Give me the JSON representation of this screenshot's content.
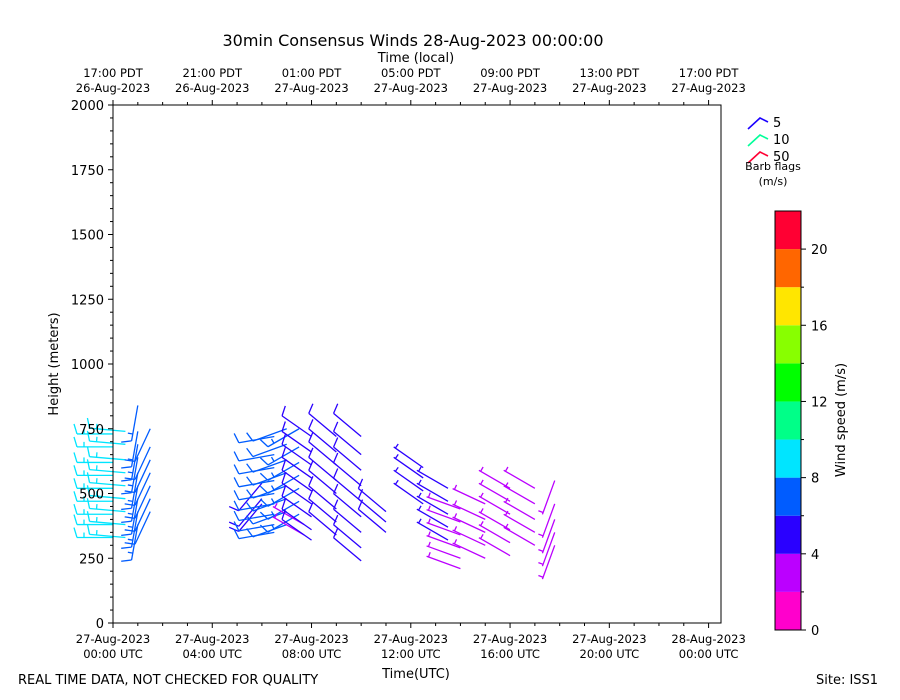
{
  "chart_data": {
    "type": "wind_barb",
    "title": "30min Consensus Winds 28-Aug-2023 00:00:00",
    "top_axis_label": "Time (local)",
    "xlabel": "Time(UTC)",
    "ylabel": "Height (meters)",
    "xlim_hours": [
      0,
      24.5
    ],
    "ylim": [
      0,
      2000
    ],
    "y_ticks": [
      0,
      250,
      500,
      750,
      1000,
      1250,
      1500,
      1750,
      2000
    ],
    "x_ticks": [
      {
        "hour": 0,
        "line1": "27-Aug-2023",
        "line2": "00:00 UTC"
      },
      {
        "hour": 4,
        "line1": "27-Aug-2023",
        "line2": "04:00 UTC"
      },
      {
        "hour": 8,
        "line1": "27-Aug-2023",
        "line2": "08:00 UTC"
      },
      {
        "hour": 12,
        "line1": "27-Aug-2023",
        "line2": "12:00 UTC"
      },
      {
        "hour": 16,
        "line1": "27-Aug-2023",
        "line2": "16:00 UTC"
      },
      {
        "hour": 20,
        "line1": "27-Aug-2023",
        "line2": "20:00 UTC"
      },
      {
        "hour": 24,
        "line1": "28-Aug-2023",
        "line2": "00:00 UTC"
      }
    ],
    "top_ticks": [
      {
        "hour": 0,
        "line1": "17:00 PDT",
        "line2": "26-Aug-2023"
      },
      {
        "hour": 4,
        "line1": "21:00 PDT",
        "line2": "26-Aug-2023"
      },
      {
        "hour": 8,
        "line1": "01:00 PDT",
        "line2": "27-Aug-2023"
      },
      {
        "hour": 12,
        "line1": "05:00 PDT",
        "line2": "27-Aug-2023"
      },
      {
        "hour": 16,
        "line1": "09:00 PDT",
        "line2": "27-Aug-2023"
      },
      {
        "hour": 20,
        "line1": "13:00 PDT",
        "line2": "27-Aug-2023"
      },
      {
        "hour": 24,
        "line1": "17:00 PDT",
        "line2": "27-Aug-2023"
      }
    ],
    "legend": {
      "title_line1": "Barb flags",
      "title_line2": "(m/s)",
      "entries": [
        {
          "label": "5",
          "color": "#1a00ff"
        },
        {
          "label": "10",
          "color": "#00ff99"
        },
        {
          "label": "50",
          "color": "#ff0033"
        }
      ]
    },
    "colorbar": {
      "label": "Wind speed (m/s)",
      "range": [
        0,
        22
      ],
      "ticks": [
        0,
        4,
        8,
        12,
        16,
        20
      ],
      "segments": [
        {
          "from": 0,
          "to": 2,
          "color": "#ff00cc"
        },
        {
          "from": 2,
          "to": 4,
          "color": "#bb00ff"
        },
        {
          "from": 4,
          "to": 6,
          "color": "#2a00ff"
        },
        {
          "from": 6,
          "to": 8,
          "color": "#005cff"
        },
        {
          "from": 8,
          "to": 10,
          "color": "#00e5ff"
        },
        {
          "from": 10,
          "to": 12,
          "color": "#00ff88"
        },
        {
          "from": 12,
          "to": 14,
          "color": "#00ff00"
        },
        {
          "from": 14,
          "to": 16,
          "color": "#88ff00"
        },
        {
          "from": 16,
          "to": 18,
          "color": "#ffe600"
        },
        {
          "from": 18,
          "to": 20,
          "color": "#ff6600"
        },
        {
          "from": 20,
          "to": 22,
          "color": "#ff0033"
        }
      ]
    },
    "series": [
      {
        "name": "t0.0",
        "hour": 0.0,
        "speed": 9,
        "dir": 270,
        "heights": [
          330,
          380,
          420,
          470,
          520,
          570,
          620,
          680,
          730
        ]
      },
      {
        "name": "t0.5",
        "hour": 0.5,
        "speed": 8,
        "dir": 275,
        "heights": [
          330,
          380,
          430,
          480,
          530,
          580,
          630,
          690,
          740
        ]
      },
      {
        "name": "t1.0",
        "hour": 1.0,
        "speed": 7,
        "dir": 190,
        "heights": [
          380,
          430,
          480,
          530,
          580,
          640,
          690,
          740,
          840
        ]
      },
      {
        "name": "t1.5",
        "hour": 1.5,
        "speed": 6,
        "dir": 205,
        "heights": [
          430,
          480,
          530,
          580,
          630,
          680,
          750
        ]
      },
      {
        "name": "t6.0",
        "hour": 6.0,
        "speed": 5,
        "dir": 220,
        "heights": [
          460,
          480,
          540
        ]
      },
      {
        "name": "t6.5",
        "hour": 6.5,
        "speed": 6,
        "dir": 260,
        "heights": [
          350,
          380,
          420,
          460,
          500,
          550,
          600,
          650,
          720
        ]
      },
      {
        "name": "t7.0",
        "hour": 7.0,
        "speed": 6,
        "dir": 250,
        "heights": [
          380,
          430,
          480,
          530,
          580,
          630,
          690,
          750
        ]
      },
      {
        "name": "t7.5",
        "hour": 7.5,
        "speed": 7,
        "dir": 240,
        "heights": [
          420,
          470,
          520,
          570,
          620,
          680,
          750
        ]
      },
      {
        "name": "t7.7",
        "hour": 7.7,
        "speed": 3,
        "dir": 300,
        "heights": [
          340,
          380
        ]
      },
      {
        "name": "t8.0",
        "hour": 8.0,
        "speed": 5,
        "dir": 305,
        "heights": [
          320,
          360,
          410,
          460,
          510,
          560,
          610,
          660,
          720
        ]
      },
      {
        "name": "t9.0",
        "hour": 9.0,
        "speed": 5,
        "dir": 310,
        "heights": [
          340,
          390,
          440,
          500,
          550,
          610,
          660,
          720
        ]
      },
      {
        "name": "t10.0",
        "hour": 10.0,
        "speed": 5,
        "dir": 310,
        "heights": [
          240,
          290,
          350,
          410,
          470,
          530,
          590,
          650,
          720
        ]
      },
      {
        "name": "t11.0",
        "hour": 11.0,
        "speed": 5,
        "dir": 310,
        "heights": [
          350,
          390,
          430
        ]
      },
      {
        "name": "t12.5",
        "hour": 12.5,
        "speed": 4,
        "dir": 305,
        "heights": [
          460,
          510,
          560,
          600
        ]
      },
      {
        "name": "t13.5",
        "hour": 13.5,
        "speed": 4,
        "dir": 300,
        "heights": [
          320,
          370,
          420,
          470,
          520
        ]
      },
      {
        "name": "t14.0",
        "hour": 14.0,
        "speed": 3,
        "dir": 290,
        "heights": [
          210,
          250,
          290,
          340,
          390,
          440
        ]
      },
      {
        "name": "t15.0",
        "hour": 15.0,
        "speed": 3,
        "dir": 295,
        "heights": [
          250,
          300,
          350,
          400,
          460
        ]
      },
      {
        "name": "t16.0",
        "hour": 16.0,
        "speed": 3,
        "dir": 300,
        "heights": [
          260,
          310,
          360,
          420,
          470,
          520
        ]
      },
      {
        "name": "t17.0",
        "hour": 17.0,
        "speed": 2,
        "dir": 300,
        "heights": [
          300,
          350,
          400,
          460,
          520
        ]
      },
      {
        "name": "t17.8",
        "hour": 17.8,
        "speed": 2,
        "dir": 200,
        "heights": [
          300,
          350,
          400,
          460,
          550
        ]
      }
    ]
  },
  "footer": {
    "left": "REAL TIME DATA, NOT CHECKED FOR QUALITY",
    "right": "Site: ISS1"
  }
}
